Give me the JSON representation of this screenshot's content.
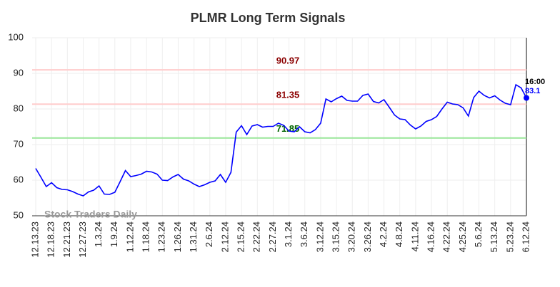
{
  "chart_data": {
    "type": "line",
    "title": "PLMR Long Term Signals",
    "watermark": "Stock Traders Daily",
    "color": "#0000ff",
    "categories": [
      "12.13.23",
      null,
      null,
      "12.18.23",
      null,
      null,
      "12.21.23",
      null,
      null,
      "12.27.23",
      null,
      null,
      "1.3.24",
      null,
      null,
      "1.9.24",
      null,
      null,
      "1.12.24",
      null,
      null,
      "1.18.24",
      null,
      null,
      "1.23.24",
      null,
      null,
      "1.26.24",
      null,
      null,
      "1.31.24",
      null,
      null,
      "2.6.24",
      null,
      null,
      "2.12.24",
      null,
      null,
      "2.15.24",
      null,
      null,
      "2.22.24",
      null,
      null,
      "2.27.24",
      null,
      null,
      "3.1.24",
      null,
      null,
      "3.6.24",
      null,
      null,
      "3.12.24",
      null,
      null,
      "3.15.24",
      null,
      null,
      "3.20.24",
      null,
      null,
      "3.26.24",
      null,
      null,
      "4.2.24",
      null,
      null,
      "4.8.24",
      null,
      null,
      "4.11.24",
      null,
      null,
      "4.16.24",
      null,
      null,
      "4.22.24",
      null,
      null,
      "4.25.24",
      null,
      null,
      "5.6.24",
      null,
      null,
      "5.13.24",
      null,
      null,
      "5.23.24",
      null,
      null,
      "6.12.24"
    ],
    "values": [
      63.3,
      60.8,
      58.2,
      59.3,
      57.9,
      57.4,
      57.3,
      56.8,
      56.1,
      55.6,
      56.7,
      57.2,
      58.4,
      56.1,
      56.0,
      56.6,
      59.6,
      62.7,
      61.0,
      61.3,
      61.7,
      62.5,
      62.3,
      61.7,
      60.0,
      59.9,
      60.9,
      61.6,
      60.3,
      59.8,
      58.9,
      58.2,
      58.7,
      59.4,
      59.8,
      61.6,
      59.4,
      62.2,
      73.5,
      75.3,
      72.8,
      75.2,
      75.6,
      74.9,
      75.1,
      75.1,
      76.0,
      75.4,
      73.8,
      73.6,
      75.0,
      73.6,
      73.3,
      74.2,
      76.0,
      82.8,
      82.0,
      82.9,
      83.6,
      82.4,
      82.2,
      82.2,
      83.8,
      84.2,
      82.1,
      81.7,
      82.6,
      80.5,
      78.3,
      77.2,
      77.0,
      75.5,
      74.4,
      75.2,
      76.5,
      77.0,
      77.9,
      80.0,
      81.9,
      81.4,
      81.2,
      80.3,
      78.0,
      83.2,
      85.0,
      83.8,
      83.1,
      83.7,
      82.5,
      81.6,
      81.2,
      86.8,
      85.9,
      83.1
    ],
    "last_time": "16:00",
    "hlines": [
      {
        "value": 90.97,
        "color": "#ffcccc",
        "label_color": "#8b0000"
      },
      {
        "value": 81.35,
        "color": "#ffcccc",
        "label_color": "#8b0000"
      },
      {
        "value": 71.85,
        "color": "#99e699",
        "label_color": "#006400"
      }
    ],
    "ylim": [
      50,
      100
    ],
    "yticks": [
      50,
      60,
      70,
      80,
      90,
      100
    ],
    "grid": true
  }
}
